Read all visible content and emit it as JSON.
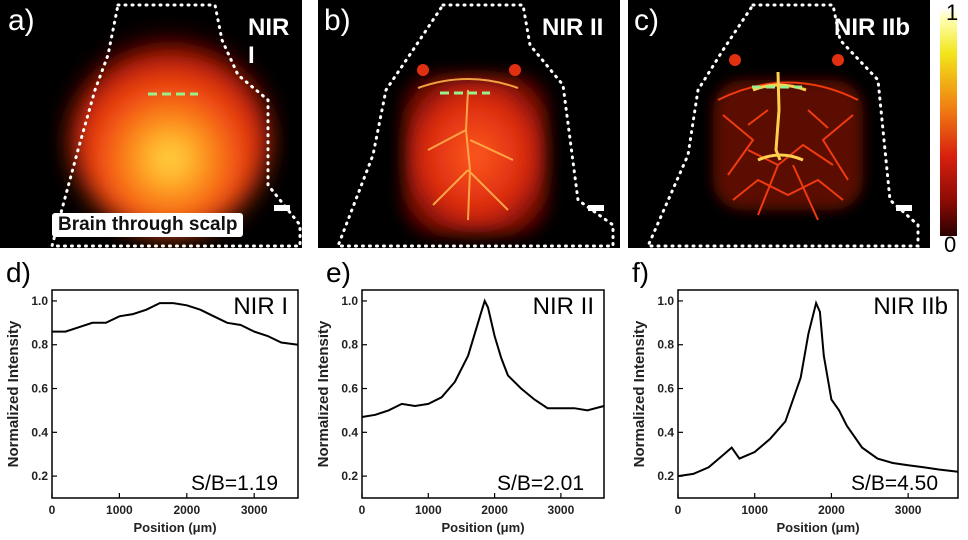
{
  "panels": [
    {
      "label": "a)",
      "title": "NIR I",
      "caption": "Brain through scalp"
    },
    {
      "label": "b)",
      "title": "NIR II"
    },
    {
      "label": "c)",
      "title": "NIR IIb"
    }
  ],
  "colorbar": {
    "max_label": "1",
    "min_label": "0"
  },
  "chart_data": [
    {
      "type": "line",
      "panel_label": "d)",
      "title": "NIR I",
      "annotation": "S/B=1.19",
      "xlabel": "Position (μm)",
      "ylabel": "Normalized Intensity",
      "xlim": [
        0,
        3650
      ],
      "ylim": [
        0.1,
        1.05
      ],
      "xticks": [
        0,
        1000,
        2000,
        3000
      ],
      "yticks": [
        0.2,
        0.4,
        0.6,
        0.8,
        1.0
      ],
      "x": [
        0,
        200,
        400,
        600,
        800,
        1000,
        1200,
        1400,
        1600,
        1800,
        2000,
        2200,
        2400,
        2600,
        2800,
        3000,
        3200,
        3400,
        3650
      ],
      "y": [
        0.86,
        0.86,
        0.88,
        0.9,
        0.9,
        0.93,
        0.94,
        0.96,
        0.99,
        0.99,
        0.98,
        0.96,
        0.93,
        0.9,
        0.89,
        0.86,
        0.84,
        0.81,
        0.8
      ]
    },
    {
      "type": "line",
      "panel_label": "e)",
      "title": "NIR II",
      "annotation": "S/B=2.01",
      "xlabel": "Position (μm)",
      "ylabel": "Normalized Intensity",
      "xlim": [
        0,
        3650
      ],
      "ylim": [
        0.1,
        1.05
      ],
      "xticks": [
        0,
        1000,
        2000,
        3000
      ],
      "yticks": [
        0.2,
        0.4,
        0.6,
        0.8,
        1.0
      ],
      "x": [
        0,
        200,
        400,
        600,
        800,
        1000,
        1200,
        1400,
        1600,
        1700,
        1800,
        1850,
        1900,
        2000,
        2100,
        2200,
        2400,
        2600,
        2800,
        3000,
        3200,
        3400,
        3650
      ],
      "y": [
        0.47,
        0.48,
        0.5,
        0.53,
        0.52,
        0.53,
        0.56,
        0.63,
        0.75,
        0.85,
        0.95,
        1.0,
        0.97,
        0.84,
        0.74,
        0.66,
        0.6,
        0.55,
        0.51,
        0.51,
        0.51,
        0.5,
        0.52
      ]
    },
    {
      "type": "line",
      "panel_label": "f)",
      "title": "NIR IIb",
      "annotation": "S/B=4.50",
      "xlabel": "Position (μm)",
      "ylabel": "Normalized Intensity",
      "xlim": [
        0,
        3650
      ],
      "ylim": [
        0.1,
        1.05
      ],
      "xticks": [
        0,
        1000,
        2000,
        3000
      ],
      "yticks": [
        0.2,
        0.4,
        0.6,
        0.8,
        1.0
      ],
      "x": [
        0,
        200,
        400,
        600,
        700,
        800,
        1000,
        1200,
        1400,
        1600,
        1700,
        1800,
        1850,
        1900,
        2000,
        2100,
        2200,
        2400,
        2600,
        2800,
        3000,
        3200,
        3400,
        3650
      ],
      "y": [
        0.2,
        0.21,
        0.24,
        0.3,
        0.33,
        0.28,
        0.31,
        0.37,
        0.45,
        0.65,
        0.85,
        0.99,
        0.95,
        0.75,
        0.55,
        0.5,
        0.43,
        0.33,
        0.28,
        0.26,
        0.25,
        0.24,
        0.23,
        0.22
      ]
    }
  ]
}
